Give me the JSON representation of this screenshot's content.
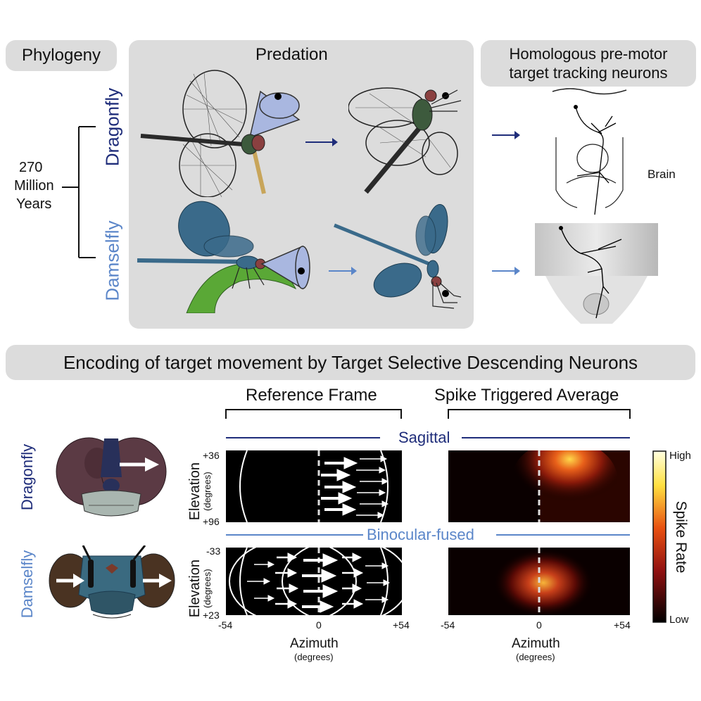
{
  "top": {
    "phylogeny_label": "Phylogeny",
    "predation_label": "Predation",
    "homologous_label_line1": "Homologous pre-motor",
    "homologous_label_line2": "target tracking neurons",
    "time_line1": "270",
    "time_line2": "Million",
    "time_line3": "Years",
    "dragonfly_label": "Dragonfly",
    "damselfly_label": "Damselfly",
    "brain_label": "Brain"
  },
  "bottom": {
    "section_title": "Encoding of target movement by Target Selective Descending Neurons",
    "reference_frame_label": "Reference Frame",
    "sta_label": "Spike Triggered Average",
    "sagittal_label": "Sagittal",
    "binocular_label": "Binocular-fused",
    "dragonfly_label": "Dragonfly",
    "damselfly_label": "Damselfly",
    "elevation_label": "Elevation",
    "elevation_units": "(degrees)",
    "azimuth_label": "Azimuth",
    "azimuth_units": "(degrees)",
    "sagittal_elev_top": "+36",
    "sagittal_elev_bottom": "+96",
    "binocular_elev_top": "-33",
    "binocular_elev_bottom": "+23",
    "az_left": "-54",
    "az_mid": "0",
    "az_right": "+54",
    "colorbar_high": "High",
    "colorbar_low": "Low",
    "colorbar_title": "Spike Rate"
  },
  "colors": {
    "dragonfly_blue": "#1f2d7a",
    "damselfly_blue": "#5b86c9",
    "panel_gray": "#dcdcdc",
    "cone_fill": "#a9b7e0"
  }
}
